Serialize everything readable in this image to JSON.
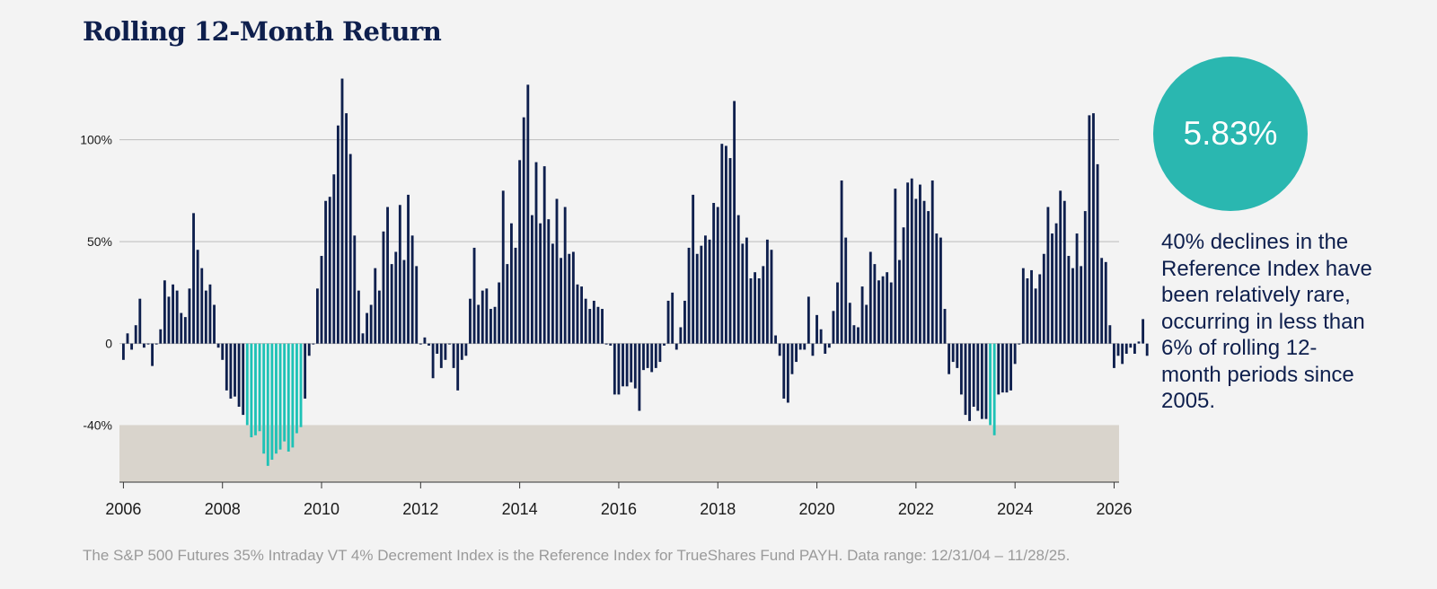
{
  "title": "Rolling 12-Month Return",
  "stat": {
    "value": "5.83%"
  },
  "side_note": "40% declines in the Reference Index have been relatively rare, occurring in less than 6% of rolling 12-month periods since 2005.",
  "footnote": "The S&P 500 Futures 35% Intraday VT 4% Decrement Index is the Reference Index for TrueShares Fund PAYH. Data range: 12/31/04 – 11/28/25.",
  "colors": {
    "bar": "#0e1f4d",
    "highlight_bar": "#1ec2b6",
    "threshold_zone": "#d9d4cc",
    "gridline": "#bdbdbd",
    "stat_circle": "#2ab7b0"
  },
  "chart_data": {
    "type": "bar",
    "title": "Rolling 12-Month Return",
    "xlabel": "",
    "ylabel": "",
    "x_range": [
      2005.92,
      2026.1
    ],
    "ylim": [
      -68,
      132
    ],
    "y_ticks": [
      {
        "value": 100,
        "label": "100%"
      },
      {
        "value": 50,
        "label": "50%"
      },
      {
        "value": 0,
        "label": "0"
      },
      {
        "value": -40,
        "label": "-40%"
      }
    ],
    "x_ticks": [
      "2006",
      "2008",
      "2010",
      "2012",
      "2014",
      "2016",
      "2018",
      "2020",
      "2022",
      "2024",
      "2026"
    ],
    "threshold_zone": {
      "from": -40,
      "to": -68
    },
    "highlight_rule": "value <= -40",
    "start": 2006.0,
    "step": 0.08333,
    "values": [
      -8,
      5,
      -3,
      9,
      22,
      -2,
      0,
      -11,
      0,
      7,
      31,
      23,
      29,
      26,
      15,
      13,
      27,
      64,
      46,
      37,
      26,
      29,
      19,
      -2,
      -8,
      -23,
      -27,
      -26,
      -31,
      -35,
      -40,
      -46,
      -45,
      -43,
      -54,
      -60,
      -57,
      -54,
      -52,
      -48,
      -53,
      -51,
      -44,
      -41,
      -27,
      -6,
      0,
      27,
      43,
      70,
      72,
      83,
      107,
      130,
      113,
      93,
      53,
      26,
      5,
      15,
      19,
      37,
      26,
      55,
      67,
      39,
      45,
      68,
      41,
      73,
      53,
      38,
      0,
      3,
      -1,
      -17,
      -5,
      -12,
      -8,
      0,
      -12,
      -23,
      -8,
      -6,
      22,
      47,
      19,
      26,
      27,
      17,
      18,
      30,
      75,
      39,
      59,
      47,
      90,
      111,
      127,
      63,
      89,
      59,
      87,
      61,
      49,
      71,
      42,
      67,
      44,
      45,
      29,
      28,
      22,
      17,
      21,
      18,
      17,
      0,
      -1,
      -25,
      -25,
      -21,
      -21,
      -19,
      -22,
      -33,
      -13,
      -12,
      -14,
      -12,
      -9,
      -1,
      21,
      25,
      -3,
      8,
      21,
      47,
      73,
      44,
      48,
      53,
      51,
      69,
      67,
      98,
      97,
      91,
      119,
      63,
      49,
      52,
      32,
      35,
      32,
      38,
      51,
      46,
      4,
      -6,
      -27,
      -29,
      -15,
      -9,
      -3,
      -3,
      23,
      -6,
      14,
      7,
      -5,
      -2,
      16,
      30,
      80,
      52,
      20,
      9,
      8,
      28,
      19,
      45,
      39,
      31,
      33,
      35,
      30,
      76,
      41,
      57,
      79,
      81,
      71,
      78,
      70,
      65,
      80,
      54,
      52,
      17,
      -15,
      -9,
      -12,
      -25,
      -35,
      -38,
      -31,
      -33,
      -37,
      -37,
      -40,
      -45,
      -25,
      -24,
      -24,
      -23,
      -10,
      0,
      37,
      32,
      36,
      27,
      34,
      44,
      67,
      54,
      59,
      75,
      70,
      43,
      37,
      54,
      38,
      65,
      112,
      113,
      88,
      42,
      40,
      9,
      -12,
      -6,
      -10,
      -5,
      -2,
      -5,
      1,
      12,
      -6
    ]
  }
}
